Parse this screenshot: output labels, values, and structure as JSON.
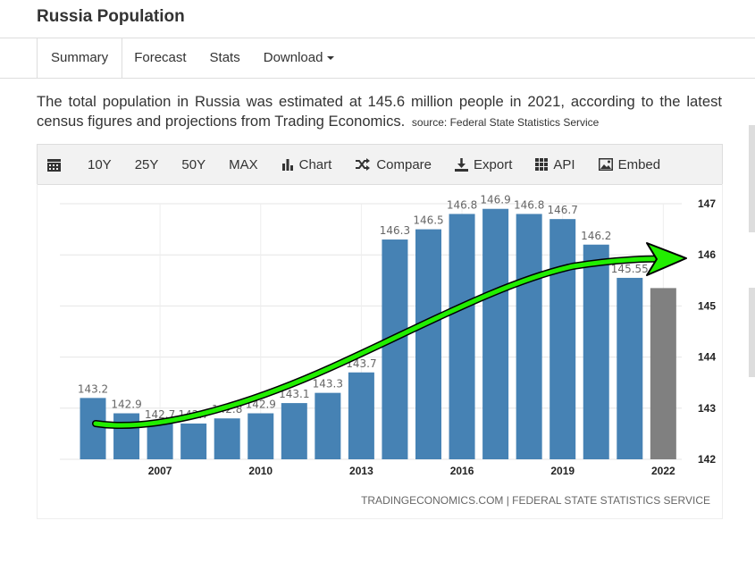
{
  "page": {
    "title": "Russia Population"
  },
  "tabs": [
    {
      "label": "Summary",
      "active": true
    },
    {
      "label": "Forecast",
      "active": false
    },
    {
      "label": "Stats",
      "active": false
    },
    {
      "label": "Download",
      "active": false,
      "dropdown": true
    }
  ],
  "summary": {
    "text": "The total population in Russia was estimated at 145.6 million people in 2021, according to the latest census figures and projections from Trading Economics.",
    "source": "source: Federal State Statistics Service"
  },
  "toolbar": {
    "calendar_icon": "calendar-icon",
    "ranges": [
      "10Y",
      "25Y",
      "50Y",
      "MAX"
    ],
    "chart_label": "Chart",
    "compare_label": "Compare",
    "export_label": "Export",
    "api_label": "API",
    "embed_label": "Embed"
  },
  "colors": {
    "bar": "#4682b4",
    "forecast_bar": "#808080",
    "arrow": "#22ee00",
    "arrow_outline": "#000000"
  },
  "chart_data": {
    "type": "bar",
    "x": [
      2005,
      2006,
      2007,
      2008,
      2009,
      2010,
      2011,
      2012,
      2013,
      2014,
      2015,
      2016,
      2017,
      2018,
      2019,
      2020,
      2021,
      2022
    ],
    "values": [
      143.2,
      142.9,
      142.7,
      142.7,
      142.8,
      142.9,
      143.1,
      143.3,
      143.7,
      146.3,
      146.5,
      146.8,
      146.9,
      146.8,
      146.7,
      146.2,
      145.55,
      145.35
    ],
    "data_labels": [
      "143.2",
      "142.9",
      "142.7",
      "142.7",
      "142.8",
      "142.9",
      "143.1",
      "143.3",
      "143.7",
      "146.3",
      "146.5",
      "146.8",
      "146.9",
      "146.8",
      "146.7",
      "146.2",
      "145.55",
      ""
    ],
    "forecast_x": [
      2022
    ],
    "x_ticks": [
      "2007",
      "2010",
      "2013",
      "2016",
      "2019",
      "2022"
    ],
    "y_ticks": [
      "142",
      "143",
      "144",
      "145",
      "146",
      "147"
    ],
    "ylim": [
      142,
      147
    ],
    "y_axis_side": "right",
    "grid": true,
    "annotation": "green upward trend arrow",
    "credit": "TRADINGECONOMICS.COM | FEDERAL STATE STATISTICS SERVICE"
  }
}
